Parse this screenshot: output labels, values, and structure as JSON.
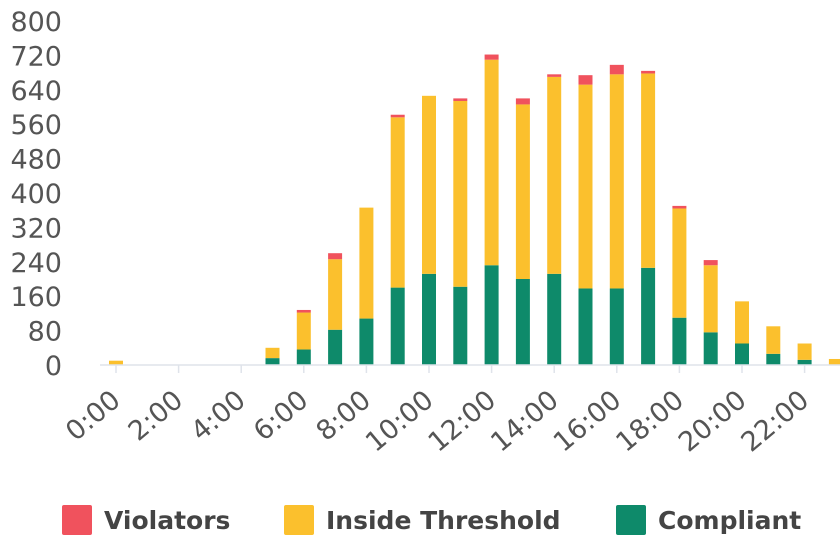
{
  "chart_data": {
    "type": "bar",
    "stacked": true,
    "categories": [
      "0:00",
      "1:00",
      "2:00",
      "3:00",
      "4:00",
      "5:00",
      "6:00",
      "7:00",
      "8:00",
      "9:00",
      "10:00",
      "11:00",
      "12:00",
      "13:00",
      "14:00",
      "15:00",
      "16:00",
      "17:00",
      "18:00",
      "19:00",
      "20:00",
      "21:00",
      "22:00",
      "23:00"
    ],
    "x_tick_labels": [
      "0:00",
      "2:00",
      "4:00",
      "6:00",
      "8:00",
      "10:00",
      "12:00",
      "14:00",
      "16:00",
      "18:00",
      "20:00",
      "22:00"
    ],
    "y_tick_labels": [
      "0",
      "80",
      "160",
      "240",
      "320",
      "400",
      "480",
      "560",
      "640",
      "720",
      "800"
    ],
    "ylim": [
      0,
      800
    ],
    "grid": false,
    "legend_position": "bottom",
    "series": [
      {
        "name": "Compliant",
        "color": "#0e8a6a",
        "values": [
          0,
          0,
          0,
          0,
          0,
          16,
          36,
          82,
          108,
          180,
          212,
          182,
          232,
          200,
          212,
          178,
          178,
          226,
          110,
          76,
          50,
          26,
          12,
          0
        ]
      },
      {
        "name": "Inside Threshold",
        "color": "#fbc02d",
        "values": [
          10,
          0,
          0,
          0,
          0,
          24,
          86,
          164,
          258,
          396,
          414,
          432,
          478,
          406,
          458,
          474,
          498,
          452,
          254,
          156,
          98,
          64,
          38,
          14
        ]
      },
      {
        "name": "Violators",
        "color": "#f0525d",
        "values": [
          0,
          0,
          0,
          0,
          0,
          0,
          6,
          14,
          0,
          6,
          0,
          6,
          12,
          14,
          6,
          22,
          22,
          6,
          6,
          12,
          0,
          0,
          0,
          0
        ]
      }
    ]
  },
  "legend": [
    {
      "label": "Violators",
      "color": "#f0525d"
    },
    {
      "label": "Inside Threshold",
      "color": "#fbc02d"
    },
    {
      "label": "Compliant",
      "color": "#0e8a6a"
    }
  ]
}
